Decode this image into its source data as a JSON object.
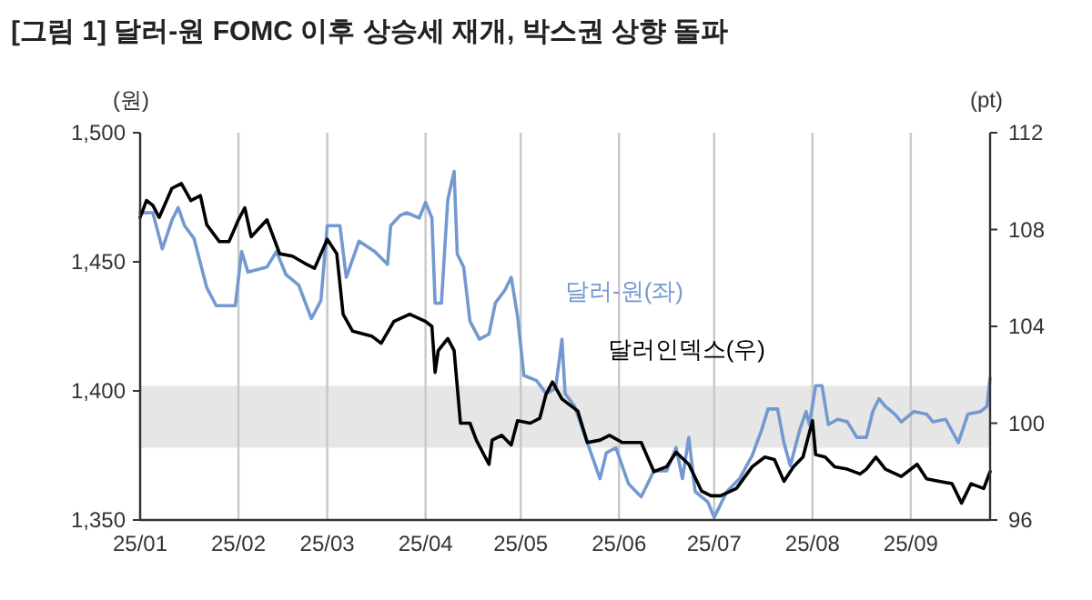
{
  "chart_data": {
    "type": "line",
    "title": "[그림 1] 달러-원 FOMC 이후 상승세 재개, 박스권 상향 돌파",
    "ylabel": "(원)",
    "y2label": "(pt)",
    "xlim": [
      "--01-01",
      "--09-26"
    ],
    "xticks": [
      {
        "value": "--01-01",
        "label": "25/01"
      },
      {
        "value": "--02-01",
        "label": "25/02"
      },
      {
        "value": "--03-01",
        "label": "25/03"
      },
      {
        "value": "--04-01",
        "label": "25/04"
      },
      {
        "value": "--05-01",
        "label": "25/05"
      },
      {
        "value": "--06-01",
        "label": "25/06"
      },
      {
        "value": "--07-01",
        "label": "25/07"
      },
      {
        "value": "--08-01",
        "label": "25/08"
      },
      {
        "value": "--09-01",
        "label": "25/09"
      }
    ],
    "ylim": [
      1350,
      1500
    ],
    "yticks": [
      {
        "value": 1350,
        "label": "1,350"
      },
      {
        "value": 1400,
        "label": "1,400"
      },
      {
        "value": 1450,
        "label": "1,450"
      },
      {
        "value": 1500,
        "label": "1,500"
      }
    ],
    "y2lim": [
      96,
      112
    ],
    "y2ticks": [
      96,
      100,
      104,
      108,
      112
    ],
    "grid": "x",
    "legend": false,
    "bands": [
      {
        "axis": "y",
        "from": 1378,
        "to": 1402,
        "color": "#e6e6e6"
      }
    ],
    "series": [
      {
        "name": "달러-원(좌)",
        "color": "#7399d0",
        "axis": "y",
        "x": [
          "--01-01",
          "--01-05",
          "--01-08",
          "--01-11",
          "--01-13",
          "--01-15",
          "--01-18",
          "--01-22",
          "--01-25",
          "--01-31",
          "--02-02",
          "--02-04",
          "--02-10",
          "--02-13",
          "--02-16",
          "--02-20",
          "--02-24",
          "--02-27",
          "--03-01",
          "--03-05",
          "--03-07",
          "--03-11",
          "--03-16",
          "--03-20",
          "--03-21",
          "--03-24",
          "--03-26",
          "--03-30",
          "--04-01",
          "--04-03",
          "--04-04",
          "--04-06",
          "--04-08",
          "--04-10",
          "--04-11",
          "--04-13",
          "--04-15",
          "--04-18",
          "--04-21",
          "--04-23",
          "--04-26",
          "--04-28",
          "--04-30",
          "--05-02",
          "--05-06",
          "--05-09",
          "--05-12",
          "--05-14",
          "--05-15",
          "--05-18",
          "--05-22",
          "--05-26",
          "--05-28",
          "--05-31",
          "--06-04",
          "--06-08",
          "--06-12",
          "--06-16",
          "--06-19",
          "--06-21",
          "--06-23",
          "--06-25",
          "--06-29",
          "--07-01",
          "--07-05",
          "--07-09",
          "--07-13",
          "--07-16",
          "--07-18",
          "--07-21",
          "--07-23",
          "--07-25",
          "--07-28",
          "--07-30",
          "--07-31",
          "--08-02",
          "--08-04",
          "--08-06",
          "--08-09",
          "--08-12",
          "--08-15",
          "--08-18",
          "--08-20",
          "--08-22",
          "--08-24",
          "--08-27",
          "--08-29",
          "--09-02",
          "--09-06",
          "--09-08",
          "--09-12",
          "--09-16",
          "--09-19",
          "--09-23",
          "--09-25",
          "--09-26"
        ],
        "values": [
          1469,
          1469,
          1455,
          1466,
          1471,
          1464,
          1459,
          1440,
          1433,
          1433,
          1454,
          1446,
          1448,
          1454,
          1445,
          1441,
          1428,
          1435,
          1464,
          1464,
          1444,
          1458,
          1454,
          1449,
          1464,
          1468,
          1469,
          1467,
          1473,
          1467,
          1434,
          1434,
          1474,
          1485,
          1453,
          1448,
          1427,
          1420,
          1422,
          1434,
          1439,
          1444,
          1429,
          1406,
          1404,
          1399,
          1401,
          1420,
          1399,
          1394,
          1380,
          1366,
          1376,
          1378,
          1364,
          1359,
          1369,
          1369,
          1378,
          1366,
          1382,
          1361,
          1357,
          1351,
          1361,
          1366,
          1375,
          1385,
          1393,
          1393,
          1380,
          1371,
          1385,
          1392,
          1387,
          1402,
          1402,
          1387,
          1389,
          1388,
          1382,
          1382,
          1392,
          1397,
          1394,
          1391,
          1388,
          1392,
          1391,
          1388,
          1389,
          1380,
          1391,
          1392,
          1394,
          1405
        ]
      },
      {
        "name": "달러인덱스(우)",
        "color": "#000000",
        "axis": "y2",
        "x": [
          "--01-01",
          "--01-03",
          "--01-05",
          "--01-07",
          "--01-11",
          "--01-14",
          "--01-17",
          "--01-20",
          "--01-22",
          "--01-26",
          "--01-29",
          "--02-01",
          "--02-03",
          "--02-05",
          "--02-10",
          "--02-14",
          "--02-18",
          "--02-22",
          "--02-25",
          "--03-01",
          "--03-04",
          "--03-06",
          "--03-09",
          "--03-15",
          "--03-18",
          "--03-22",
          "--03-27",
          "--04-01",
          "--04-03",
          "--04-04",
          "--04-05",
          "--04-08",
          "--04-10",
          "--04-12",
          "--04-15",
          "--04-17",
          "--04-21",
          "--04-22",
          "--04-25",
          "--04-28",
          "--04-30",
          "--05-04",
          "--05-07",
          "--05-09",
          "--05-11",
          "--05-14",
          "--05-19",
          "--05-22",
          "--05-26",
          "--05-29",
          "--06-02",
          "--06-08",
          "--06-12",
          "--06-16",
          "--06-19",
          "--06-23",
          "--06-27",
          "--06-30",
          "--07-03",
          "--07-08",
          "--07-13",
          "--07-17",
          "--07-20",
          "--07-23",
          "--07-26",
          "--07-29",
          "--08-01",
          "--08-02",
          "--08-05",
          "--08-08",
          "--08-12",
          "--08-16",
          "--08-18",
          "--08-21",
          "--08-24",
          "--08-29",
          "--09-03",
          "--09-06",
          "--09-10",
          "--09-14",
          "--09-17",
          "--09-20",
          "--09-24",
          "--09-26"
        ],
        "values": [
          108.5,
          109.2,
          109.0,
          108.5,
          109.7,
          109.9,
          109.2,
          109.4,
          108.2,
          107.5,
          107.5,
          108.4,
          108.9,
          107.7,
          108.4,
          107.0,
          106.9,
          106.6,
          106.4,
          107.6,
          107.0,
          104.5,
          103.8,
          103.6,
          103.3,
          104.2,
          104.5,
          104.2,
          104.0,
          102.1,
          103.0,
          103.5,
          103.0,
          100.0,
          100.0,
          99.3,
          98.3,
          99.3,
          99.5,
          99.1,
          100.1,
          100.0,
          100.2,
          101.2,
          101.7,
          101.0,
          100.5,
          99.2,
          99.3,
          99.5,
          99.2,
          99.2,
          98.0,
          98.2,
          98.8,
          98.3,
          97.2,
          97.0,
          97.0,
          97.3,
          98.2,
          98.6,
          98.5,
          97.6,
          98.2,
          98.6,
          100.1,
          98.7,
          98.6,
          98.2,
          98.1,
          97.9,
          98.1,
          98.6,
          98.1,
          97.8,
          98.3,
          97.7,
          97.6,
          97.5,
          96.7,
          97.5,
          97.3,
          98.0
        ]
      }
    ]
  }
}
